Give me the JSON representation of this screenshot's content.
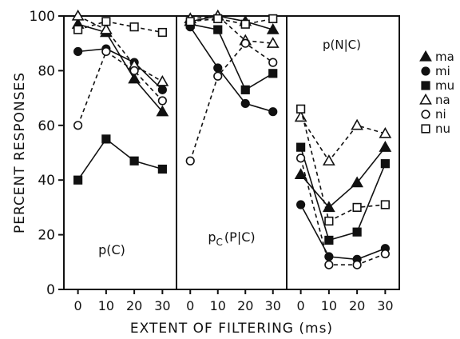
{
  "chart_data": {
    "type": "line",
    "ylabel": "PERCENT RESPONSES",
    "xlabel": "EXTENT OF FILTERING (ms)",
    "ylim": [
      0,
      100
    ],
    "yticks": [
      "0",
      "20",
      "40",
      "60",
      "80",
      "100"
    ],
    "xlim": [
      -5,
      35
    ],
    "x": [
      0,
      10,
      20,
      30
    ],
    "xticks": [
      "0",
      "10",
      "20",
      "30"
    ],
    "legend": {
      "placement": "right",
      "entries": [
        {
          "name": "ma",
          "marker": "filled-triangle",
          "line": "solid"
        },
        {
          "name": "mi",
          "marker": "filled-circle",
          "line": "solid"
        },
        {
          "name": "mu",
          "marker": "filled-square",
          "line": "solid"
        },
        {
          "name": "na",
          "marker": "open-triangle",
          "line": "dashed"
        },
        {
          "name": "ni",
          "marker": "open-circle",
          "line": "dashed"
        },
        {
          "name": "nu",
          "marker": "open-square",
          "line": "dashed"
        }
      ]
    },
    "panels": [
      {
        "label": "p(C)",
        "series": [
          {
            "name": "ma",
            "values": [
              97,
              94,
              77,
              65
            ]
          },
          {
            "name": "mi",
            "values": [
              87,
              88,
              83,
              73
            ]
          },
          {
            "name": "mu",
            "values": [
              40,
              55,
              47,
              44
            ]
          },
          {
            "name": "na",
            "values": [
              100,
              95,
              82,
              76
            ]
          },
          {
            "name": "ni",
            "values": [
              60,
              87,
              80,
              69
            ]
          },
          {
            "name": "nu",
            "values": [
              95,
              98,
              96,
              94
            ]
          }
        ]
      },
      {
        "label": "pC(P|C)",
        "series": [
          {
            "name": "ma",
            "values": [
              98,
              100,
              98,
              95
            ]
          },
          {
            "name": "mi",
            "values": [
              96,
              81,
              68,
              65
            ]
          },
          {
            "name": "mu",
            "values": [
              97,
              95,
              73,
              79
            ]
          },
          {
            "name": "na",
            "values": [
              99,
              100,
              91,
              90
            ]
          },
          {
            "name": "ni",
            "values": [
              47,
              78,
              90,
              83
            ]
          },
          {
            "name": "nu",
            "values": [
              98,
              99,
              97,
              99
            ]
          }
        ]
      },
      {
        "label": "p(N|C)",
        "series": [
          {
            "name": "ma",
            "values": [
              42,
              30,
              39,
              52
            ]
          },
          {
            "name": "mi",
            "values": [
              31,
              12,
              11,
              15
            ]
          },
          {
            "name": "mu",
            "values": [
              52,
              18,
              21,
              46
            ]
          },
          {
            "name": "na",
            "values": [
              63,
              47,
              60,
              57
            ]
          },
          {
            "name": "ni",
            "values": [
              48,
              9,
              9,
              13
            ]
          },
          {
            "name": "nu",
            "values": [
              66,
              25,
              30,
              31
            ]
          }
        ]
      }
    ]
  }
}
